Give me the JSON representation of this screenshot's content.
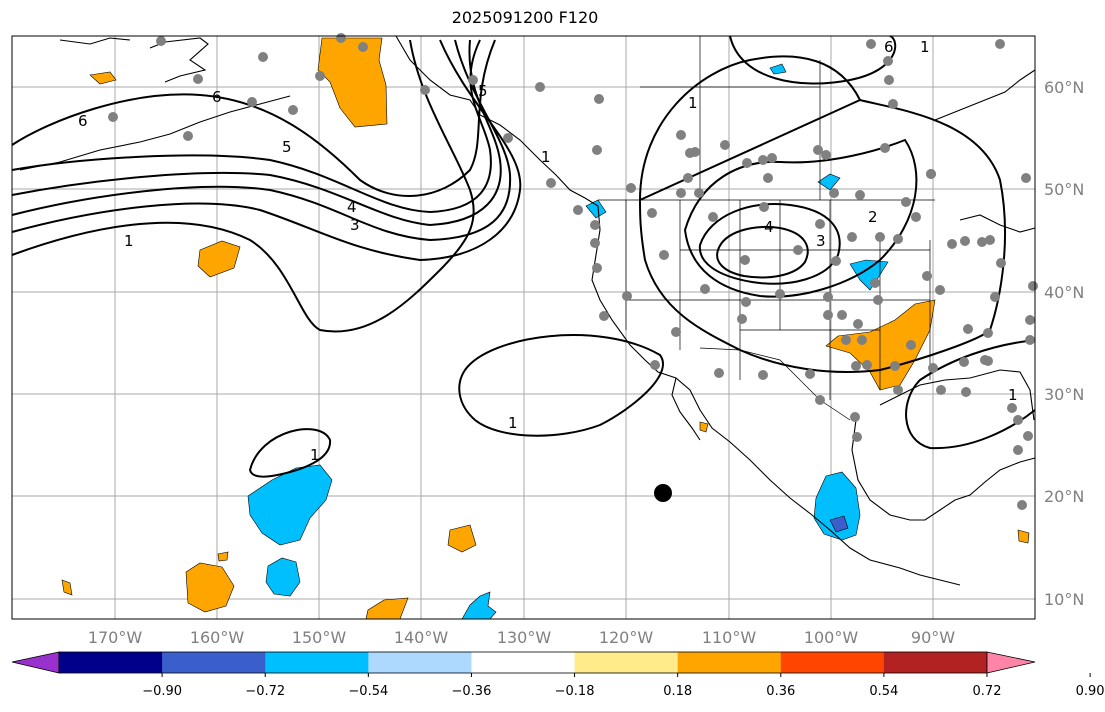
{
  "title": "2025091200 F120",
  "lat_labels": [
    "60°N",
    "50°N",
    "40°N",
    "30°N",
    "20°N",
    "10°N"
  ],
  "lon_labels": [
    "170°W",
    "160°W",
    "150°W",
    "140°W",
    "130°W",
    "120°W",
    "110°W",
    "100°W",
    "90°W"
  ],
  "colorbar": {
    "ticks": [
      "−0.90",
      "−0.72",
      "−0.54",
      "−0.36",
      "−0.18",
      "0.18",
      "0.36",
      "0.54",
      "0.72",
      "0.90"
    ],
    "colors": [
      "#9932CC",
      "#00008B",
      "#3A5FCD",
      "#00BFFF",
      "#ADD8FF",
      "#FFFFFF",
      "#FFEB8A",
      "#FFA500",
      "#FF4500",
      "#B22222",
      "#FF85A8"
    ]
  },
  "contour_labels": [
    "6",
    "6",
    "5",
    "4",
    "3",
    "1",
    "6",
    "5",
    "1",
    "1",
    "4",
    "3",
    "2",
    "1",
    "1",
    "1",
    "1"
  ],
  "colors": {
    "land_outline": "#000000",
    "grid": "#a9a9a9",
    "station": "#808080",
    "orange": "#FFA500",
    "cyan": "#00BFFF",
    "blue": "#3A5FCD"
  }
}
